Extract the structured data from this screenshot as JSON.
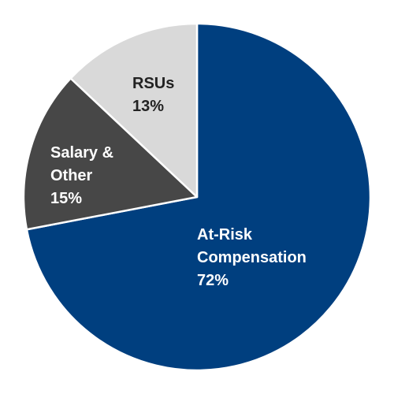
{
  "chart_data": {
    "type": "pie",
    "title": "",
    "start_angle_deg": 0,
    "direction": "clockwise",
    "slices": [
      {
        "label_lines": [
          "At-Risk",
          "Compensation"
        ],
        "pct_label": "72%",
        "value": 72,
        "color": "#003f7f",
        "text_color": "#ffffff"
      },
      {
        "label_lines": [
          "Salary &",
          "Other"
        ],
        "pct_label": "15%",
        "value": 15,
        "color": "#474747",
        "text_color": "#ffffff"
      },
      {
        "label_lines": [
          "RSUs"
        ],
        "pct_label": "13%",
        "value": 13,
        "color": "#d9d9d9",
        "text_color": "#222222"
      }
    ]
  }
}
